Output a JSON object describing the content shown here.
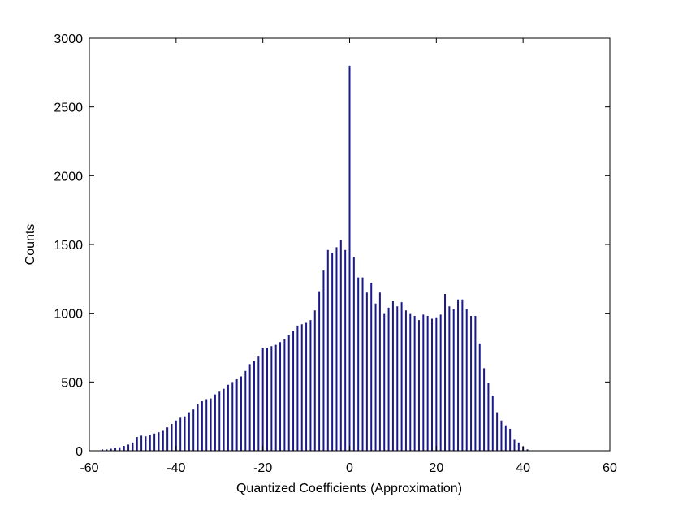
{
  "chart_data": {
    "type": "bar",
    "title": "",
    "xlabel": "Quantized Coefficients (Approximation)",
    "ylabel": "Counts",
    "xlim": [
      -60,
      60
    ],
    "ylim": [
      0,
      3000
    ],
    "xticks": [
      -60,
      -40,
      -20,
      0,
      20,
      40,
      60
    ],
    "yticks": [
      0,
      500,
      1000,
      1500,
      2000,
      2500,
      3000
    ],
    "xtick_labels": [
      "-60",
      "-40",
      "-20",
      "0",
      "20",
      "40",
      "60"
    ],
    "ytick_labels": [
      "0",
      "500",
      "1000",
      "1500",
      "2000",
      "2500",
      "3000"
    ],
    "grid": false,
    "bar_color": "#1a1a8c",
    "x": [
      -57,
      -56,
      -55,
      -54,
      -53,
      -52,
      -51,
      -50,
      -49,
      -48,
      -47,
      -46,
      -45,
      -44,
      -43,
      -42,
      -41,
      -40,
      -39,
      -38,
      -37,
      -36,
      -35,
      -34,
      -33,
      -32,
      -31,
      -30,
      -29,
      -28,
      -27,
      -26,
      -25,
      -24,
      -23,
      -22,
      -21,
      -20,
      -19,
      -18,
      -17,
      -16,
      -15,
      -14,
      -13,
      -12,
      -11,
      -10,
      -9,
      -8,
      -7,
      -6,
      -5,
      -4,
      -3,
      -2,
      -1,
      0,
      1,
      2,
      3,
      4,
      5,
      6,
      7,
      8,
      9,
      10,
      11,
      12,
      13,
      14,
      15,
      16,
      17,
      18,
      19,
      20,
      21,
      22,
      23,
      24,
      25,
      26,
      27,
      28,
      29,
      30,
      31,
      32,
      33,
      34,
      35,
      36,
      37,
      38,
      39,
      40,
      41
    ],
    "values": [
      10,
      10,
      15,
      20,
      25,
      35,
      45,
      60,
      100,
      110,
      105,
      115,
      125,
      135,
      145,
      170,
      195,
      220,
      240,
      250,
      280,
      300,
      340,
      360,
      375,
      380,
      410,
      430,
      450,
      480,
      500,
      520,
      540,
      580,
      630,
      650,
      690,
      750,
      750,
      760,
      770,
      790,
      810,
      840,
      870,
      910,
      920,
      930,
      950,
      1020,
      1160,
      1310,
      1460,
      1440,
      1480,
      1530,
      1460,
      2800,
      1410,
      1260,
      1260,
      1150,
      1220,
      1070,
      1150,
      1000,
      1040,
      1090,
      1050,
      1080,
      1020,
      1000,
      980,
      950,
      990,
      980,
      960,
      970,
      990,
      1140,
      1050,
      1030,
      1100,
      1100,
      1030,
      980,
      980,
      780,
      600,
      490,
      400,
      280,
      220,
      185,
      160,
      80,
      60,
      30,
      10
    ]
  }
}
